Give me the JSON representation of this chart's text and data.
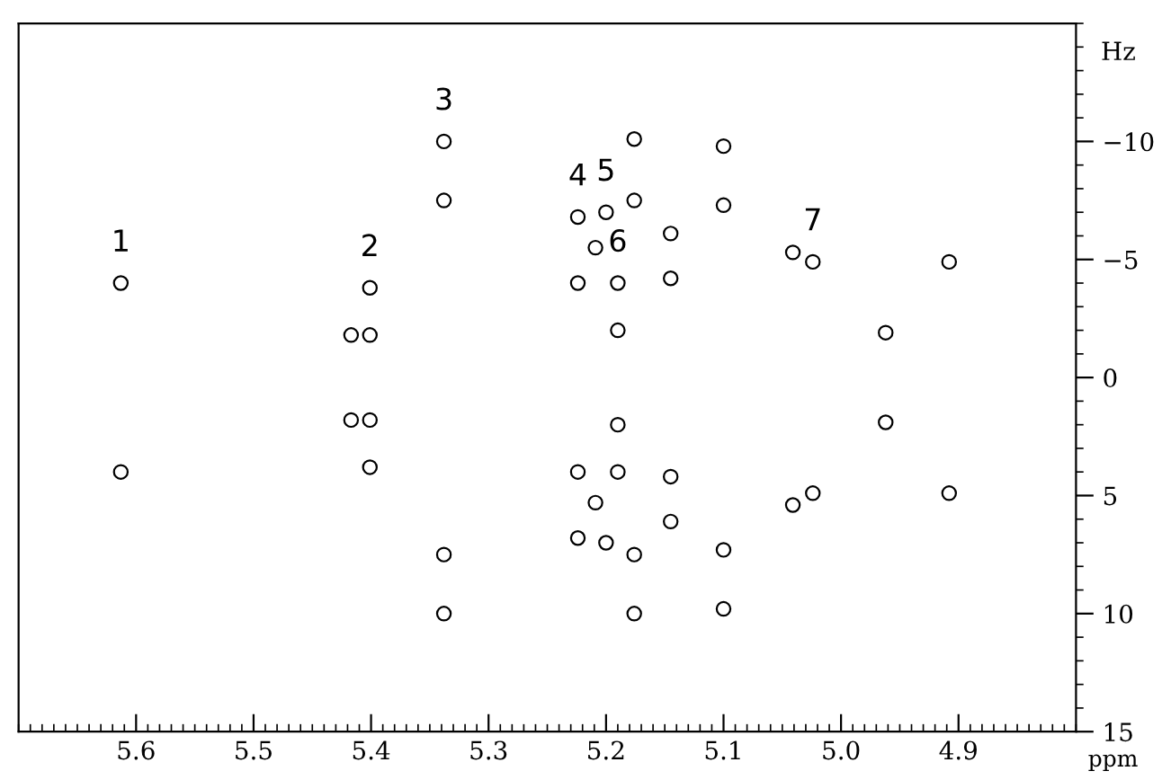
{
  "chart_data": {
    "type": "scatter",
    "xlabel": "ppm",
    "ylabel": "Hz",
    "xlim": [
      5.7,
      4.8
    ],
    "xticks": [
      5.6,
      5.5,
      5.4,
      5.3,
      5.2,
      5.1,
      {
        "value": 5.0,
        "label": "5.0"
      },
      4.9
    ],
    "ylim": [
      15,
      -15
    ],
    "yticks": [
      -10,
      -5,
      0,
      5,
      10,
      15
    ],
    "grid": false,
    "legend": false,
    "series": [
      {
        "color": "#000000",
        "x": [
          5.613,
          5.613,
          5.401,
          5.401,
          5.417,
          5.417,
          5.338,
          5.338,
          5.401,
          5.401,
          5.338,
          5.338,
          5.19,
          5.19,
          5.224,
          5.224,
          5.224,
          5.224,
          5.209,
          5.209,
          5.2,
          5.2,
          5.19,
          5.19,
          5.176,
          5.176,
          5.176,
          5.176,
          5.145,
          5.145,
          5.145,
          5.145,
          5.1,
          5.1,
          5.1,
          5.1,
          5.041,
          5.041,
          5.024,
          5.024,
          4.962,
          4.962,
          4.908,
          4.908
        ],
        "values": [
          -4,
          4,
          -1.8,
          1.8,
          -1.8,
          1.8,
          -10,
          10,
          -3.8,
          3.8,
          -7.5,
          7.5,
          -4,
          4,
          -6.8,
          -4,
          4,
          6.8,
          -5.5,
          5.3,
          -7,
          7,
          -2,
          2,
          -10.1,
          -7.5,
          7.5,
          10,
          -6.1,
          -4.2,
          4.2,
          6.1,
          -9.8,
          -7.3,
          7.3,
          9.8,
          -5.3,
          5.4,
          -4.9,
          4.9,
          -1.9,
          1.9,
          -4.9,
          4.9
        ]
      }
    ],
    "annotations": [
      {
        "text": "1",
        "x": 5.613,
        "y": -4
      },
      {
        "text": "2",
        "x": 5.401,
        "y": -3.8
      },
      {
        "text": "3",
        "x": 5.338,
        "y": -10
      },
      {
        "text": "4",
        "x": 5.224,
        "y": -6.8
      },
      {
        "text": "5",
        "x": 5.2,
        "y": -7
      },
      {
        "text": "6",
        "x": 5.19,
        "y": -4
      },
      {
        "text": "7",
        "x": 5.024,
        "y": -4.9
      }
    ]
  }
}
